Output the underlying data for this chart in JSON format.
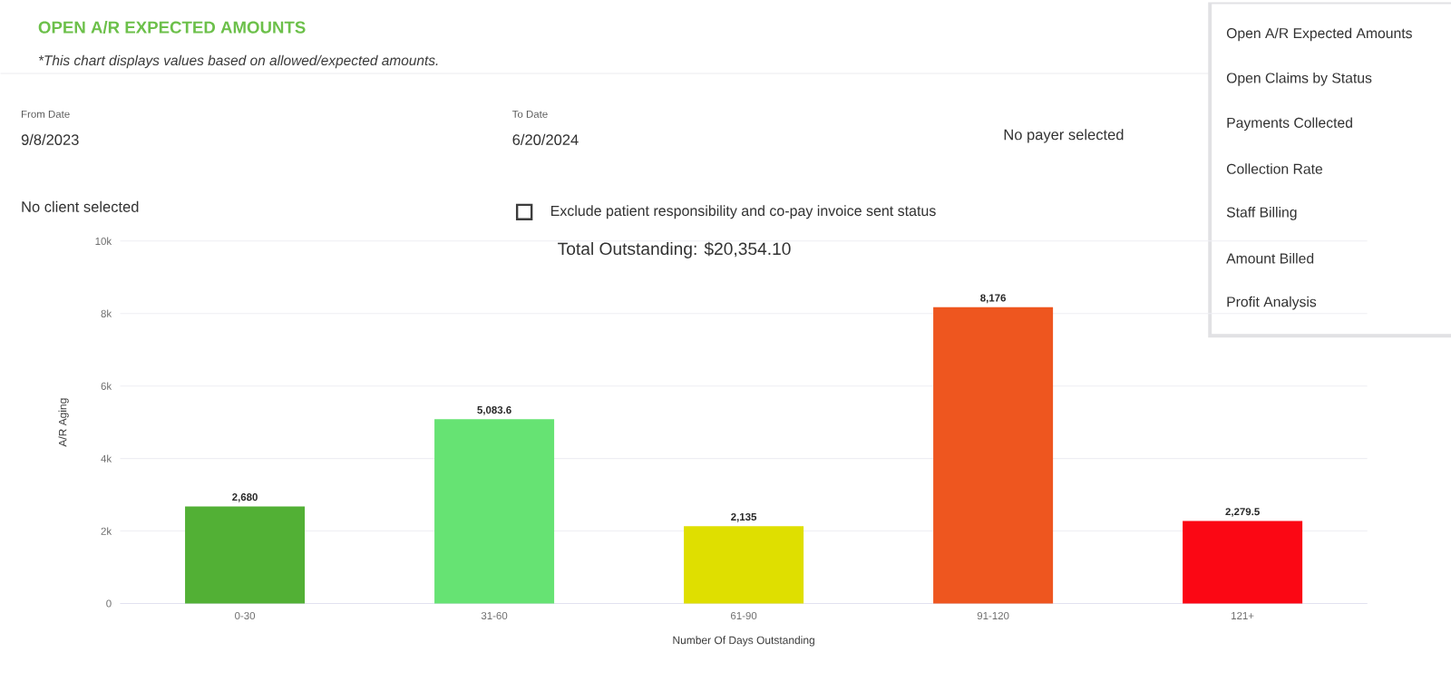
{
  "chart_data": {
    "type": "bar",
    "title": "OPEN A/R EXPECTED AMOUNTS",
    "subtitle": "*This chart displays values based on allowed/expected amounts.",
    "annotations": [
      "From Date",
      "9/8/2023",
      "To Date",
      "6/20/2024",
      "No payer selected",
      "No client selected",
      "Exclude patient responsibility and co-pay invoice sent status",
      "Total Outstanding: $20,354.10",
      "Open A/R Expected Amounts",
      "Open Claims by Status",
      "Payments Collected",
      "Collection Rate",
      "Staff Billing",
      "Amount Billed",
      "Profit Analysis"
    ],
    "xlabel": "Number Of Days Outstanding",
    "ylabel": "A/R Aging",
    "categories": [
      "0-30",
      "31-60",
      "61-90",
      "91-120",
      "121+"
    ],
    "values": [
      2680,
      5083.6,
      2135,
      8176,
      2279.5
    ],
    "value_labels": [
      "2,680",
      "5,083.6",
      "2,135",
      "8,176",
      "2,279.5"
    ],
    "colors": [
      "#52b035",
      "#66e373",
      "#dfdf00",
      "#ee561f",
      "#fb0714"
    ],
    "ylim": [
      0,
      10000
    ],
    "yticks": [
      0,
      {
        "value": 2000,
        "label": "2k"
      },
      {
        "value": 4000,
        "label": "4k"
      },
      {
        "value": 6000,
        "label": "6k"
      },
      {
        "value": 8000,
        "label": "8k"
      },
      {
        "value": 10000,
        "label": "10k"
      }
    ],
    "grid": "y"
  }
}
